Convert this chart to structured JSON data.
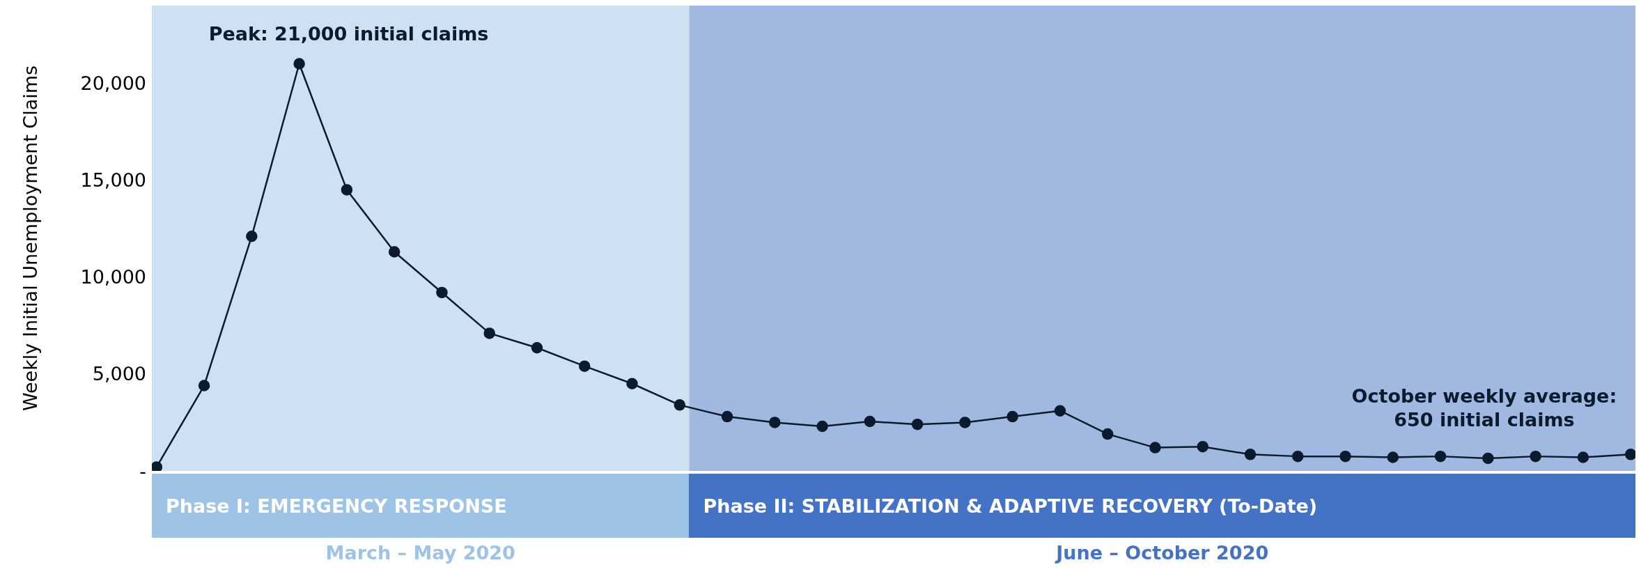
{
  "chart_data": {
    "type": "line",
    "ylabel": "Weekly Initial Unemployment Claims",
    "categories": [
      null,
      null,
      null,
      null,
      null,
      null,
      null,
      null,
      null,
      null,
      null,
      null,
      null,
      null,
      null,
      null,
      null,
      null,
      null,
      null,
      null,
      null,
      null,
      null,
      null,
      null,
      null,
      null,
      null,
      null,
      null,
      null
    ],
    "series": [
      {
        "color": "#0b1a2c",
        "values": [
          200,
          4400,
          12100,
          21000,
          14500,
          11300,
          9200,
          7100,
          6350,
          5400,
          4500,
          3400,
          2800,
          2500,
          2300,
          2550,
          2400,
          2500,
          2800,
          3100,
          1900,
          1200,
          1250,
          850,
          750,
          750,
          700,
          750,
          650,
          750,
          700,
          850
        ]
      }
    ],
    "ylim": [
      0,
      24000
    ],
    "yticks": [
      {
        "value": 0,
        "label": "-"
      },
      {
        "value": 5000,
        "label": "5,000"
      },
      {
        "value": 10000,
        "label": "10,000"
      },
      {
        "value": 15000,
        "label": "15,000"
      },
      {
        "value": 20000,
        "label": "20,000"
      }
    ],
    "grid": false,
    "legend": false,
    "marker": "circle",
    "line_style": "solid",
    "annotations": [
      "Peak: 21,000 initial claims",
      "October weekly average:\n650 initial claims",
      "Phase I: EMERGENCY RESPONSE",
      "Phase II: STABILIZATION & ADAPTIVE RECOVERY (To-Date)",
      "March – May 2020",
      "June – October 2020"
    ]
  }
}
